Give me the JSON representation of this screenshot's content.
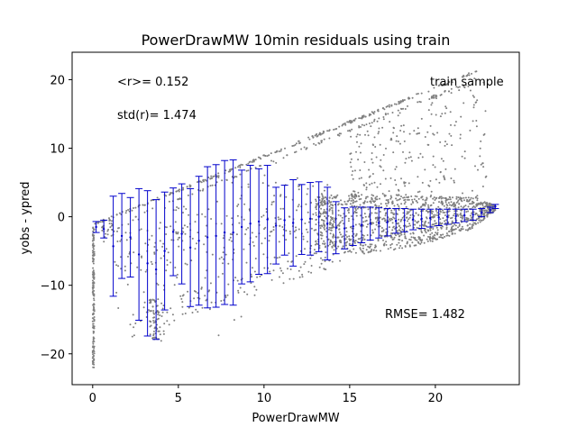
{
  "chart_data": {
    "type": "scatter",
    "title": "PowerDrawMW 10min residuals using train",
    "xlabel": "PowerDrawMW",
    "ylabel": "yobs - ypred",
    "xlim": [
      -1.2,
      24.9
    ],
    "ylim": [
      -24.5,
      24
    ],
    "x_ticks": [
      0,
      5,
      10,
      15,
      20
    ],
    "x_tick_labels": [
      "0",
      "5",
      "10",
      "15",
      "20"
    ],
    "y_ticks": [
      -20,
      -10,
      0,
      10,
      20
    ],
    "y_tick_labels": [
      "−20",
      "−10",
      "0",
      "10",
      "20"
    ],
    "grid": false,
    "annotations": {
      "mean": "<r>= 0.152",
      "std": "std(r)= 1.474",
      "sample": "train sample",
      "rmse": "RMSE= 1.482"
    },
    "colors": {
      "points": "#808080",
      "errorbars": "#0000cc",
      "axes": "#000000"
    },
    "series": [
      {
        "type": "errorbar",
        "x": [
          0.2,
          0.65,
          1.2,
          1.7,
          2.2,
          2.7,
          3.2,
          3.7,
          4.2,
          4.7,
          5.2,
          5.7,
          6.2,
          6.7,
          7.2,
          7.7,
          8.2,
          8.7,
          9.2,
          9.7,
          10.2,
          10.7,
          11.2,
          11.7,
          12.2,
          12.7,
          13.2,
          13.7,
          14.2,
          14.7,
          15.2,
          15.7,
          16.2,
          16.7,
          17.2,
          17.7,
          18.2,
          18.7,
          19.2,
          19.7,
          20.2,
          20.7,
          21.2,
          21.7,
          22.2,
          22.7,
          23.2,
          23.5
        ],
        "y": [
          -1.5,
          -1.8,
          -4.3,
          -2.8,
          -3.0,
          -5.5,
          -6.8,
          -7.7,
          -5.0,
          -2.2,
          -2.5,
          -4.5,
          -3.5,
          -3.0,
          -2.8,
          -2.3,
          -2.3,
          -1.5,
          -1.0,
          -0.7,
          -0.4,
          -1.3,
          -0.5,
          -0.9,
          -0.4,
          -0.3,
          0.0,
          -1.0,
          -1.6,
          -1.7,
          -1.4,
          -1.2,
          -1.0,
          -0.9,
          -0.8,
          -0.6,
          -0.5,
          -0.4,
          -0.3,
          -0.2,
          -0.1,
          0.0,
          0.1,
          0.2,
          0.3,
          0.6,
          1.0,
          1.5
        ],
        "yerr": [
          0.8,
          1.3,
          7.3,
          6.2,
          5.8,
          9.6,
          10.6,
          10.2,
          8.6,
          6.4,
          7.3,
          8.6,
          9.4,
          10.3,
          10.4,
          10.5,
          10.6,
          8.3,
          8.5,
          7.7,
          7.9,
          5.6,
          5.1,
          6.3,
          5.1,
          5.3,
          5.1,
          5.3,
          3.8,
          3.0,
          2.8,
          2.6,
          2.4,
          2.2,
          2.0,
          1.8,
          1.7,
          1.5,
          1.4,
          1.3,
          1.2,
          1.1,
          1.0,
          0.9,
          0.8,
          0.6,
          0.4,
          0.3
        ]
      },
      {
        "type": "band",
        "name": "upper line",
        "x": [
          0,
          22.5
        ],
        "y": [
          -1.0,
          21.5
        ]
      },
      {
        "type": "band",
        "name": "dense cone",
        "x": [
          13,
          16,
          19,
          22,
          23.5
        ],
        "upper": [
          3.0,
          3.5,
          3.2,
          2.8,
          1.8
        ],
        "lower": [
          -4.5,
          -5.5,
          -4.2,
          -2.0,
          0.9
        ]
      }
    ]
  }
}
